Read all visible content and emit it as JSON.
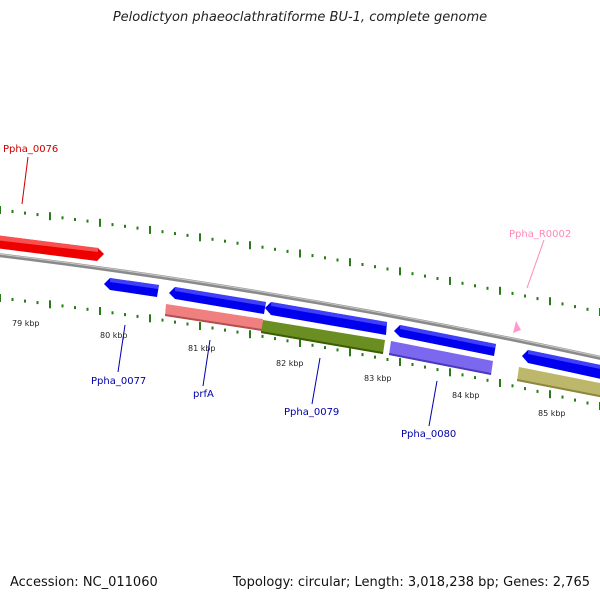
{
  "title": "Pelodictyon phaeoclathratiforme BU-1, complete genome",
  "footer": {
    "accession": "Accession: NC_011060",
    "stats": "Topology: circular; Length: 3,018,238 bp; Genes: 2,765"
  },
  "colors": {
    "tick": "#2a7a1a",
    "backbone": "#8a8a8a",
    "blue_gene": "#0000ee",
    "red_gene": "#ee0000",
    "pink_gene": "#f08080",
    "green_gene": "#6b8e23",
    "purple_gene": "#7b68ee",
    "khaki_gene": "#bdb76b",
    "rna_marker": "#ff99cc",
    "label_blue": "#0000aa",
    "label_red": "#cc0000",
    "label_pink": "#ff88bb"
  },
  "kbp_labels": [
    "79 kbp",
    "80 kbp",
    "81 kbp",
    "82 kbp",
    "83 kbp",
    "84 kbp",
    "85 kbp"
  ],
  "gene_labels": [
    {
      "text": "Ppha_0076",
      "color": "label_red"
    },
    {
      "text": "Ppha_R0002",
      "color": "label_pink"
    },
    {
      "text": "Ppha_0077",
      "color": "label_blue"
    },
    {
      "text": "prfA",
      "color": "label_blue"
    },
    {
      "text": "Ppha_0079",
      "color": "label_blue"
    },
    {
      "text": "Ppha_0080",
      "color": "label_blue"
    }
  ]
}
